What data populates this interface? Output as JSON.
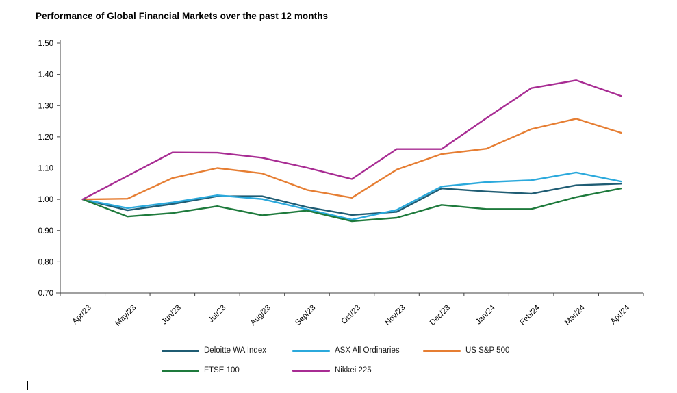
{
  "chart_data": {
    "type": "line",
    "title": "Performance of Global Financial Markets over the past 12 months",
    "xlabel": "",
    "ylabel": "",
    "categories": [
      "Apr/23",
      "May/23",
      "Jun/23",
      "Jul/23",
      "Aug/23",
      "Sep/23",
      "Oct/23",
      "Nov/23",
      "Dec/23",
      "Jan/24",
      "Feb/24",
      "Mar/24",
      "Apr/24"
    ],
    "series": [
      {
        "name": "Deloitte WA Index",
        "color": "#1F5C73",
        "values": [
          1.0,
          0.965,
          0.985,
          1.01,
          1.01,
          0.975,
          0.95,
          0.96,
          1.035,
          1.025,
          1.018,
          1.045,
          1.05
        ]
      },
      {
        "name": "ASX All Ordinaries",
        "color": "#2BA9DC",
        "values": [
          1.0,
          0.972,
          0.99,
          1.013,
          1.001,
          0.968,
          0.935,
          0.966,
          1.041,
          1.055,
          1.061,
          1.086,
          1.057
        ]
      },
      {
        "name": "US S&P 500",
        "color": "#E67E33",
        "values": [
          1.0,
          1.002,
          1.068,
          1.1,
          1.083,
          1.03,
          1.005,
          1.095,
          1.145,
          1.162,
          1.225,
          1.258,
          1.213
        ]
      },
      {
        "name": "FTSE 100",
        "color": "#1E7A3C",
        "values": [
          1.0,
          0.945,
          0.956,
          0.978,
          0.949,
          0.964,
          0.93,
          0.941,
          0.982,
          0.969,
          0.969,
          1.007,
          1.035
        ]
      },
      {
        "name": "Nikkei 225",
        "color": "#A82C93",
        "values": [
          1.0,
          1.075,
          1.15,
          1.149,
          1.133,
          1.101,
          1.065,
          1.161,
          1.161,
          1.26,
          1.356,
          1.381,
          1.331
        ]
      }
    ],
    "ylim": [
      0.7,
      1.5
    ],
    "ytick_step": 0.1,
    "ytick_labels": [
      "0.70",
      "0.80",
      "0.90",
      "1.00",
      "1.10",
      "1.20",
      "1.30",
      "1.40",
      "1.50"
    ],
    "grid": false,
    "legend_position": "bottom",
    "axis_color": "#404040",
    "text_color": "#000000"
  }
}
